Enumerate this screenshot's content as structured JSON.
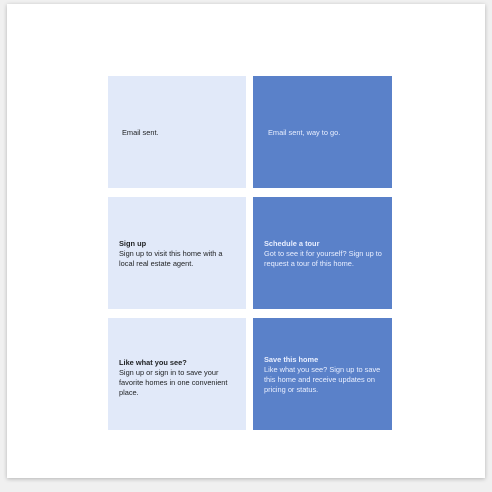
{
  "cards": [
    {
      "variant": "light",
      "title": "",
      "body": "Email sent."
    },
    {
      "variant": "dark",
      "title": "",
      "body": "Email sent, way to go."
    },
    {
      "variant": "light",
      "title": "Sign up",
      "body": "Sign up to visit this home with a local real estate agent."
    },
    {
      "variant": "dark",
      "title": "Schedule a tour",
      "body": "Got to see it for yourself? Sign up to request a tour of this home."
    },
    {
      "variant": "light",
      "title": "Like what you see?",
      "body": "Sign up or sign in to save your favorite homes in one convenient place."
    },
    {
      "variant": "dark",
      "title": "Save this home",
      "body": "Like what you see? Sign up to save this home and receive updates on pricing or status."
    }
  ],
  "colors": {
    "light_bg": "#e1e9f9",
    "dark_bg": "#5a81c9",
    "light_text": "#222426",
    "dark_text": "#e9efff"
  }
}
